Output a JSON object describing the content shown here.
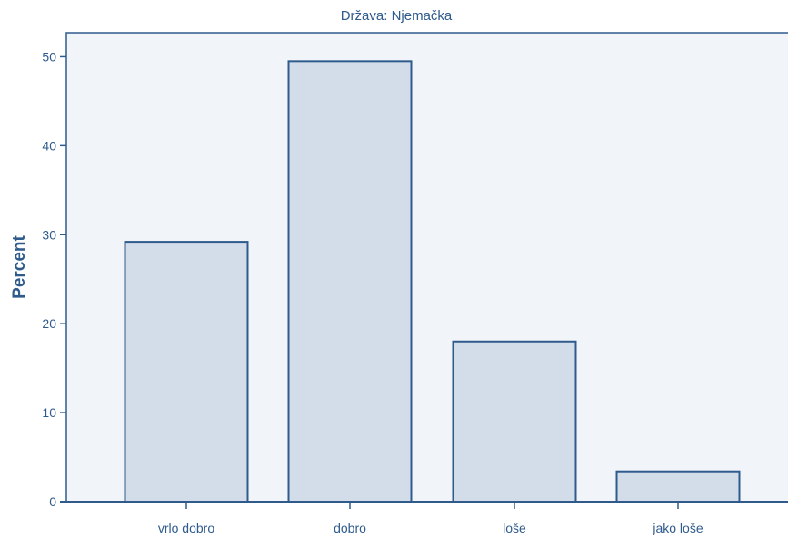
{
  "chart_data": {
    "type": "bar",
    "title": "Država: Njemačka",
    "xlabel": "",
    "ylabel": "Percent",
    "categories": [
      "vrlo dobro",
      "dobro",
      "loše",
      "jako loše"
    ],
    "values": [
      29.2,
      49.5,
      18.0,
      3.4
    ],
    "ylim": [
      0,
      52.7
    ],
    "yticks": [
      0,
      10,
      20,
      30,
      40,
      50
    ],
    "grid": false,
    "colors": {
      "plot_background": "#f1f5f9",
      "bar_fill": "#d3dde9",
      "bar_stroke": "#2f5b8c",
      "axis": "#2f5b8c",
      "text": "#2f5b8c"
    }
  }
}
